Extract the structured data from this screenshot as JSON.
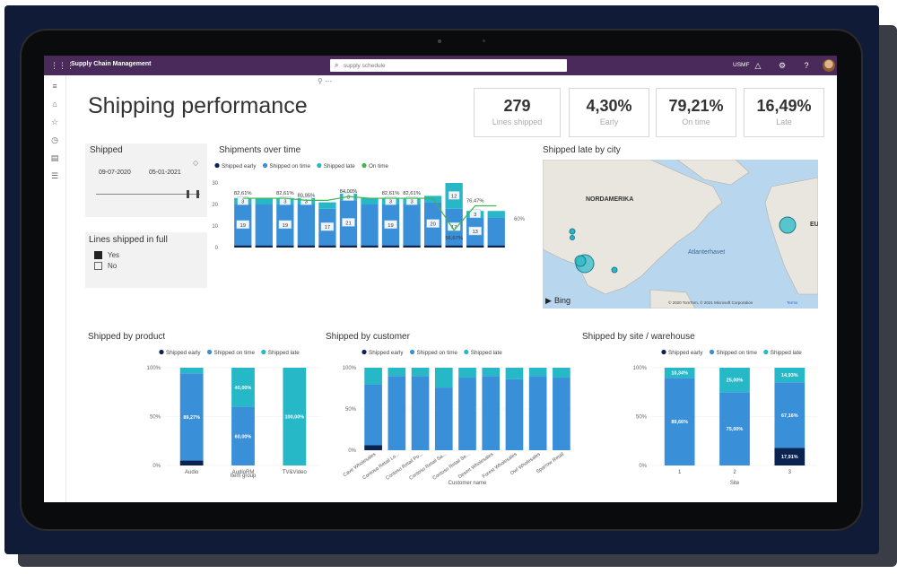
{
  "app": {
    "title": "Supply Chain Management",
    "search_placeholder": "supply schedule",
    "company": "USMF"
  },
  "page": {
    "title": "Shipping performance"
  },
  "kpis": [
    {
      "value": "279",
      "label": "Lines shipped"
    },
    {
      "value": "4,30%",
      "label": "Early"
    },
    {
      "value": "79,21%",
      "label": "On time"
    },
    {
      "value": "16,49%",
      "label": "Late"
    }
  ],
  "shipped_filter": {
    "title": "Shipped",
    "date_from": "09-07-2020",
    "date_to": "05-01-2021"
  },
  "lines_in_full": {
    "title": "Lines shipped in full",
    "options": [
      {
        "label": "Yes",
        "checked": true
      },
      {
        "label": "No",
        "checked": false
      }
    ]
  },
  "colors": {
    "early": "#0b2351",
    "on_time": "#3a8fd9",
    "late": "#27b8c7",
    "on_time_line": "#3fb54a",
    "topbar": "#4a2a5a"
  },
  "legend": {
    "early": "Shipped early",
    "on_time": "Shipped on time",
    "late": "Shipped late",
    "on_time_pct": "On time"
  },
  "map": {
    "title": "Shipped late by city",
    "labels": [
      "NORDAMERIKA",
      "Atlanterhavet",
      "EU"
    ],
    "provider": "Bing",
    "copyright": "© 2020 TomTom, © 2021 Microsoft Corporation",
    "terms": "Terms"
  },
  "chart_data": [
    {
      "id": "shipments_over_time",
      "type": "bar",
      "title": "Shipments over time",
      "stacked": true,
      "yticks": [
        "0",
        "10",
        "20",
        "30"
      ],
      "ylim": [
        0,
        30
      ],
      "y2ticks": [
        "60%",
        "80%"
      ],
      "series": [
        {
          "name": "Shipped early",
          "values": [
            1,
            1,
            1,
            1,
            1,
            1,
            1,
            1,
            1,
            1,
            1,
            1,
            1
          ]
        },
        {
          "name": "Shipped on time",
          "values": [
            19,
            19,
            19,
            19,
            17,
            21,
            19,
            19,
            19,
            20,
            17,
            13,
            13
          ]
        },
        {
          "name": "Shipped late",
          "values": [
            3,
            3,
            3,
            3,
            3,
            3,
            3,
            3,
            3,
            3,
            12,
            3,
            3
          ]
        }
      ],
      "bar_labels": {
        "on_time": [
          "19",
          "",
          "19",
          "",
          "17",
          "21",
          "",
          "19",
          "",
          "20",
          "17",
          "13",
          ""
        ],
        "late": [
          "3",
          "",
          "3",
          "3",
          "",
          "3",
          "",
          "3",
          "3",
          "",
          "12",
          "3",
          ""
        ]
      },
      "line_series": {
        "name": "On time",
        "values": [
          82.61,
          82.61,
          82.61,
          80.95,
          80.95,
          84.0,
          82.61,
          82.61,
          82.61,
          82.61,
          56.67,
          76.47,
          76.47
        ],
        "point_labels": [
          "82,61%",
          "",
          "82,61%",
          "80,95%",
          "",
          "84,00%",
          "",
          "82,61%",
          "82,61%",
          "",
          "56,67%",
          "76,47%",
          ""
        ]
      }
    },
    {
      "id": "shipped_by_product",
      "type": "bar",
      "title": "Shipped by product",
      "stacked": true,
      "categories": [
        "Audio",
        "AudioRM",
        "TV&Video"
      ],
      "xlabel": "Item group",
      "yticks": [
        "0%",
        "50%",
        "100%"
      ],
      "ylim": [
        0,
        100
      ],
      "series": [
        {
          "name": "Shipped early",
          "values": [
            5,
            0,
            0
          ]
        },
        {
          "name": "Shipped on time",
          "values": [
            89.27,
            60.0,
            0
          ]
        },
        {
          "name": "Shipped late",
          "values": [
            5.73,
            40.0,
            100.0
          ]
        }
      ],
      "labels": {
        "on_time": [
          "89,27%",
          "60,00%",
          ""
        ],
        "late": [
          "",
          "40,00%",
          "100,00%"
        ]
      }
    },
    {
      "id": "shipped_by_customer",
      "type": "bar",
      "title": "Shipped by customer",
      "stacked": true,
      "categories": [
        "Cave Wholesales",
        "Contoso Retail Lo...",
        "Contoso Retail Po...",
        "Contoso Retail Sa...",
        "Contoso Retail Se...",
        "Desert Wholesales",
        "Forest Wholesales",
        "Owl Wholesales",
        "Sparrow Retail"
      ],
      "xlabel": "Customer name",
      "yticks": [
        "0%",
        "50%",
        "100%"
      ],
      "ylim": [
        0,
        100
      ],
      "series": [
        {
          "name": "Shipped early",
          "values": [
            6,
            0,
            0,
            0,
            0,
            0,
            0,
            0,
            0
          ]
        },
        {
          "name": "Shipped on time",
          "values": [
            74,
            90,
            90,
            76,
            88,
            90,
            86,
            90,
            88
          ]
        },
        {
          "name": "Shipped late",
          "values": [
            20,
            10,
            10,
            24,
            12,
            10,
            14,
            10,
            12
          ]
        }
      ]
    },
    {
      "id": "shipped_by_site",
      "type": "bar",
      "title": "Shipped by site / warehouse",
      "stacked": true,
      "categories": [
        "1",
        "2",
        "3"
      ],
      "xlabel": "Site",
      "yticks": [
        "0%",
        "50%",
        "100%"
      ],
      "ylim": [
        0,
        100
      ],
      "series": [
        {
          "name": "Shipped early",
          "values": [
            0,
            0,
            17.91
          ]
        },
        {
          "name": "Shipped on time",
          "values": [
            89.66,
            75.0,
            67.16
          ]
        },
        {
          "name": "Shipped late",
          "values": [
            10.34,
            25.0,
            14.93
          ]
        }
      ],
      "labels": {
        "early": [
          "",
          "",
          "17,91%"
        ],
        "on_time": [
          "89,66%",
          "75,00%",
          "67,16%"
        ],
        "late": [
          "10,34%",
          "25,00%",
          "14,93%"
        ]
      }
    }
  ]
}
